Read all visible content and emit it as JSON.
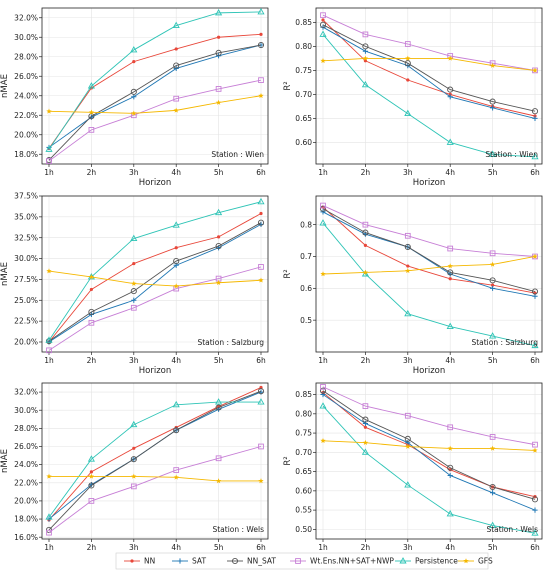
{
  "legend": {
    "items": [
      {
        "key": "NN",
        "label": "NN",
        "color": "#e8473a",
        "marker": "dot"
      },
      {
        "key": "SAT",
        "label": "SAT",
        "color": "#1f77b4",
        "marker": "plus"
      },
      {
        "key": "NN_SAT",
        "label": "NN_SAT",
        "color": "#555555",
        "marker": "circle"
      },
      {
        "key": "ENS",
        "label": "Wt.Ens.NN+SAT+NWP",
        "color": "#c77fd6",
        "marker": "square"
      },
      {
        "key": "PERS",
        "label": "Persistence",
        "color": "#2ec4b6",
        "marker": "triangle"
      },
      {
        "key": "GFS",
        "label": "GFS",
        "color": "#f5b800",
        "marker": "star"
      }
    ]
  },
  "chart_data": [
    {
      "type": "line",
      "station": "Station : Wien",
      "xlabel": "Horizon",
      "ylabel": "nMAE",
      "categories": [
        "1h",
        "2h",
        "3h",
        "4h",
        "5h",
        "6h"
      ],
      "ylim": [
        17.0,
        33.0
      ],
      "yticks": [
        18,
        20,
        22,
        24,
        26,
        28,
        30,
        32
      ],
      "ytick_labels": [
        "18.0%",
        "20.0%",
        "22.0%",
        "24.0%",
        "26.0%",
        "28.0%",
        "30.0%",
        "32.0%"
      ],
      "series": [
        {
          "key": "NN",
          "values": [
            18.6,
            24.8,
            27.5,
            28.8,
            30.0,
            30.3
          ]
        },
        {
          "key": "SAT",
          "values": [
            18.7,
            21.8,
            23.9,
            26.8,
            28.1,
            29.2
          ]
        },
        {
          "key": "NN_SAT",
          "values": [
            17.4,
            21.9,
            24.4,
            27.1,
            28.4,
            29.2
          ]
        },
        {
          "key": "ENS",
          "values": [
            17.3,
            20.5,
            22.0,
            23.7,
            24.7,
            25.6
          ]
        },
        {
          "key": "PERS",
          "values": [
            18.5,
            25.0,
            28.7,
            31.2,
            32.5,
            32.6
          ]
        },
        {
          "key": "GFS",
          "values": [
            22.4,
            22.3,
            22.2,
            22.5,
            23.3,
            24.0
          ]
        }
      ]
    },
    {
      "type": "line",
      "station": "Station : Wien",
      "xlabel": "Horizon",
      "ylabel": "R²",
      "categories": [
        "1h",
        "2h",
        "3h",
        "4h",
        "5h",
        "6h"
      ],
      "ylim": [
        0.555,
        0.88
      ],
      "yticks": [
        0.6,
        0.65,
        0.7,
        0.75,
        0.8,
        0.85
      ],
      "ytick_labels": [
        "0.60",
        "0.65",
        "0.70",
        "0.75",
        "0.80",
        "0.85"
      ],
      "series": [
        {
          "key": "NN",
          "values": [
            0.855,
            0.77,
            0.73,
            0.7,
            0.675,
            0.655
          ]
        },
        {
          "key": "SAT",
          "values": [
            0.84,
            0.79,
            0.76,
            0.695,
            0.672,
            0.65
          ]
        },
        {
          "key": "NN_SAT",
          "values": [
            0.845,
            0.8,
            0.765,
            0.71,
            0.685,
            0.665
          ]
        },
        {
          "key": "ENS",
          "values": [
            0.865,
            0.825,
            0.805,
            0.78,
            0.765,
            0.75
          ]
        },
        {
          "key": "PERS",
          "values": [
            0.825,
            0.72,
            0.66,
            0.6,
            0.575,
            0.57
          ]
        },
        {
          "key": "GFS",
          "values": [
            0.77,
            0.775,
            0.775,
            0.775,
            0.76,
            0.75
          ]
        }
      ]
    },
    {
      "type": "line",
      "station": "Station : Salzburg",
      "xlabel": "Horizon",
      "ylabel": "nMAE",
      "categories": [
        "1h",
        "2h",
        "3h",
        "4h",
        "5h",
        "6h"
      ],
      "ylim": [
        18.8,
        37.5
      ],
      "yticks": [
        20,
        22.5,
        25,
        27.5,
        30,
        32.5,
        35,
        37.5
      ],
      "ytick_labels": [
        "20.0%",
        "22.5%",
        "25.0%",
        "27.5%",
        "30.0%",
        "32.5%",
        "35.0%",
        "37.5%"
      ],
      "series": [
        {
          "key": "NN",
          "values": [
            20.0,
            26.3,
            29.4,
            31.3,
            32.6,
            35.4
          ]
        },
        {
          "key": "SAT",
          "values": [
            20.0,
            23.3,
            25.0,
            29.2,
            31.3,
            34.1
          ]
        },
        {
          "key": "NN_SAT",
          "values": [
            20.1,
            23.6,
            26.1,
            29.7,
            31.5,
            34.3
          ]
        },
        {
          "key": "ENS",
          "values": [
            19.0,
            22.3,
            24.1,
            26.4,
            27.6,
            29.0
          ]
        },
        {
          "key": "PERS",
          "values": [
            20.2,
            27.8,
            32.4,
            34.0,
            35.5,
            36.8
          ]
        },
        {
          "key": "GFS",
          "values": [
            28.5,
            27.8,
            27.0,
            26.7,
            27.1,
            27.4
          ]
        }
      ]
    },
    {
      "type": "line",
      "station": "Station : Salzburg",
      "xlabel": "Horizon",
      "ylabel": "R²",
      "categories": [
        "1h",
        "2h",
        "3h",
        "4h",
        "5h",
        "6h"
      ],
      "ylim": [
        0.4,
        0.89
      ],
      "yticks": [
        0.5,
        0.6,
        0.7,
        0.8
      ],
      "ytick_labels": [
        "0.5",
        "0.6",
        "0.7",
        "0.8"
      ],
      "series": [
        {
          "key": "NN",
          "values": [
            0.855,
            0.735,
            0.67,
            0.63,
            0.61,
            0.585
          ]
        },
        {
          "key": "SAT",
          "values": [
            0.84,
            0.77,
            0.73,
            0.645,
            0.6,
            0.575
          ]
        },
        {
          "key": "NN_SAT",
          "values": [
            0.85,
            0.775,
            0.73,
            0.65,
            0.625,
            0.59
          ]
        },
        {
          "key": "ENS",
          "values": [
            0.86,
            0.8,
            0.765,
            0.725,
            0.71,
            0.7
          ]
        },
        {
          "key": "PERS",
          "values": [
            0.805,
            0.645,
            0.52,
            0.48,
            0.45,
            0.42
          ]
        },
        {
          "key": "GFS",
          "values": [
            0.645,
            0.65,
            0.655,
            0.67,
            0.675,
            0.7
          ]
        }
      ]
    },
    {
      "type": "line",
      "station": "Station : Wels",
      "xlabel": "Horizon",
      "ylabel": "nMAE",
      "categories": [
        "1h",
        "2h",
        "3h",
        "4h",
        "5h",
        "6h"
      ],
      "ylim": [
        15.8,
        33.0
      ],
      "yticks": [
        16,
        18,
        20,
        22,
        24,
        26,
        28,
        30,
        32
      ],
      "ytick_labels": [
        "16.0%",
        "18.0%",
        "20.0%",
        "22.0%",
        "24.0%",
        "26.0%",
        "28.0%",
        "30.0%",
        "32.0%"
      ],
      "series": [
        {
          "key": "NN",
          "values": [
            17.9,
            23.2,
            25.8,
            28.1,
            30.4,
            32.5
          ]
        },
        {
          "key": "SAT",
          "values": [
            18.0,
            21.8,
            24.6,
            27.8,
            30.1,
            32.0
          ]
        },
        {
          "key": "NN_SAT",
          "values": [
            16.8,
            21.7,
            24.6,
            27.8,
            30.3,
            32.1
          ]
        },
        {
          "key": "ENS",
          "values": [
            16.5,
            20.0,
            21.6,
            23.4,
            24.7,
            26.0
          ]
        },
        {
          "key": "PERS",
          "values": [
            18.2,
            24.6,
            28.4,
            30.6,
            30.9,
            30.9
          ]
        },
        {
          "key": "GFS",
          "values": [
            22.7,
            22.7,
            22.7,
            22.6,
            22.2,
            22.2
          ]
        }
      ]
    },
    {
      "type": "line",
      "station": "Station : Wels",
      "xlabel": "Horizon",
      "ylabel": "R²",
      "categories": [
        "1h",
        "2h",
        "3h",
        "4h",
        "5h",
        "6h"
      ],
      "ylim": [
        0.475,
        0.88
      ],
      "yticks": [
        0.5,
        0.55,
        0.6,
        0.65,
        0.7,
        0.75,
        0.8,
        0.85
      ],
      "ytick_labels": [
        "0.50",
        "0.55",
        "0.60",
        "0.65",
        "0.70",
        "0.75",
        "0.80",
        "0.85"
      ],
      "series": [
        {
          "key": "NN",
          "values": [
            0.855,
            0.765,
            0.72,
            0.655,
            0.61,
            0.585
          ]
        },
        {
          "key": "SAT",
          "values": [
            0.85,
            0.775,
            0.725,
            0.64,
            0.595,
            0.55
          ]
        },
        {
          "key": "NN_SAT",
          "values": [
            0.86,
            0.785,
            0.735,
            0.66,
            0.61,
            0.578
          ]
        },
        {
          "key": "ENS",
          "values": [
            0.87,
            0.82,
            0.795,
            0.765,
            0.74,
            0.72
          ]
        },
        {
          "key": "PERS",
          "values": [
            0.82,
            0.7,
            0.615,
            0.54,
            0.51,
            0.49
          ]
        },
        {
          "key": "GFS",
          "values": [
            0.73,
            0.725,
            0.715,
            0.71,
            0.71,
            0.705
          ]
        }
      ]
    }
  ]
}
